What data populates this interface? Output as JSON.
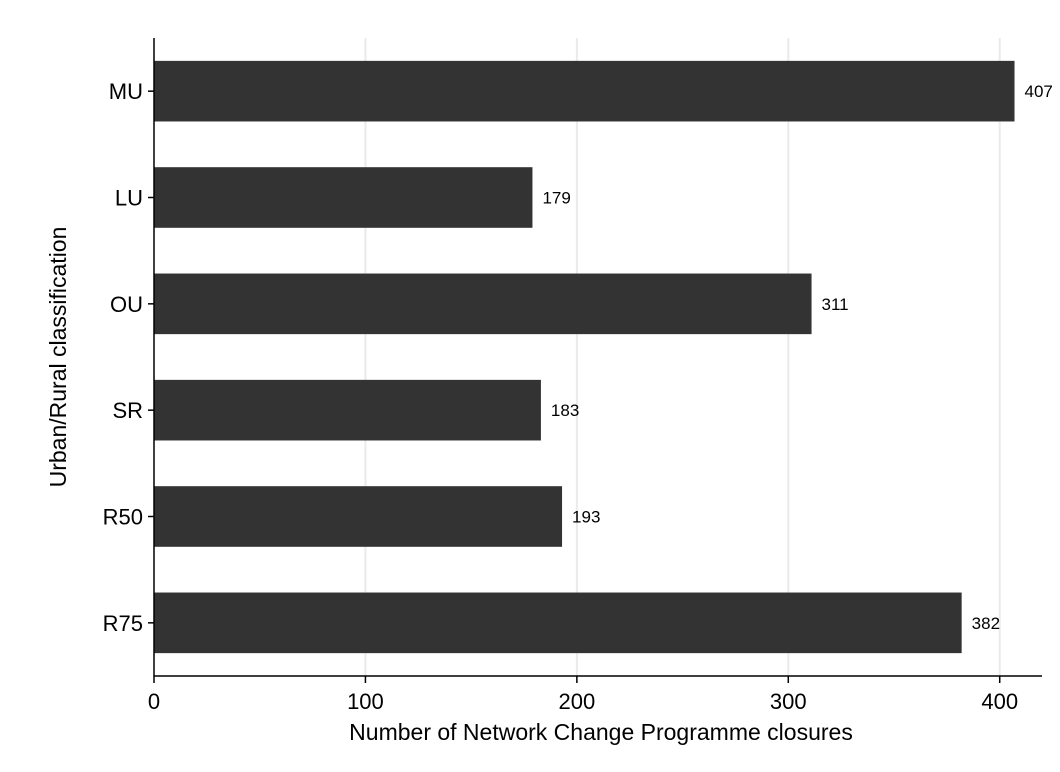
{
  "chart_data": {
    "type": "bar",
    "orientation": "horizontal",
    "categories": [
      "MU",
      "LU",
      "OU",
      "SR",
      "R50",
      "R75"
    ],
    "values": [
      407,
      179,
      311,
      183,
      193,
      382
    ],
    "xlabel": "Number of Network Change Programme closures",
    "ylabel": "Urban/Rural classification",
    "xlim": [
      0,
      420
    ],
    "xticks": [
      0,
      100,
      200,
      300,
      400
    ],
    "grid": true,
    "data_labels": true,
    "colors": {
      "bar": "#333333",
      "grid": "#eaeaea",
      "axis": "#000000"
    }
  }
}
